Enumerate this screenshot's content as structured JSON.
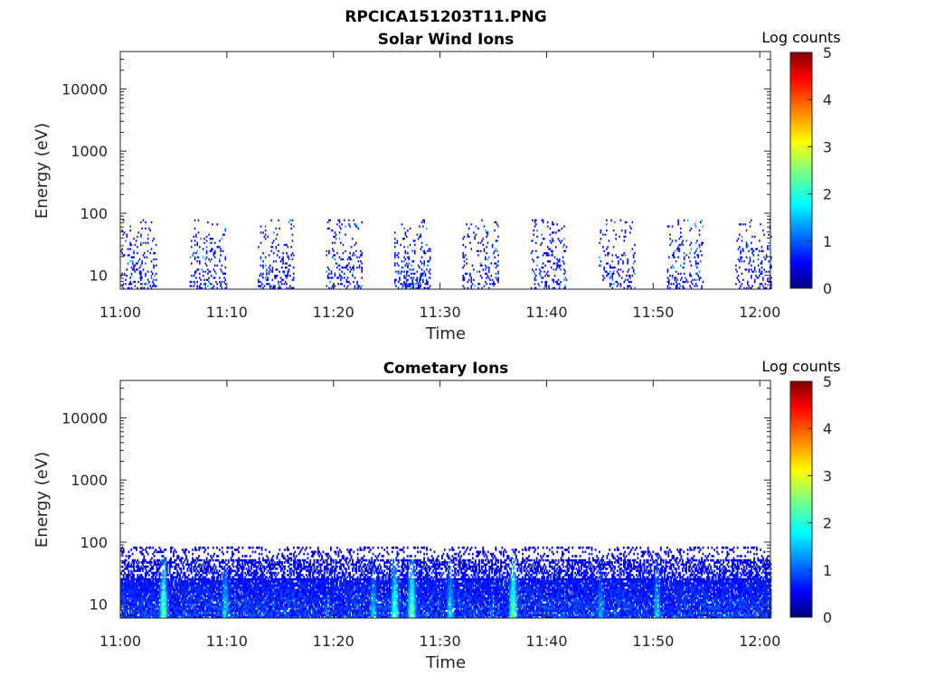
{
  "figure": {
    "filename": "RPCICA151203T11.PNG"
  },
  "chart_data": [
    {
      "type": "heatmap",
      "title": "Solar Wind Ions",
      "xlabel": "Time",
      "ylabel": "Energy (eV)",
      "x_ticks": [
        "11:00",
        "11:10",
        "11:20",
        "11:30",
        "11:40",
        "11:50",
        "12:00"
      ],
      "y_ticks": [
        "10",
        "100",
        "1000",
        "10000"
      ],
      "y_scale": "log",
      "ylim_eV": [
        6,
        40000
      ],
      "xlim": [
        "11:00",
        "12:01"
      ],
      "colorbar": {
        "label": "Log counts",
        "range": [
          0,
          5
        ],
        "ticks": [
          "0",
          "1",
          "2",
          "3",
          "4",
          "5"
        ],
        "colormap": "jet"
      },
      "data_energy_range_eV": [
        6,
        80
      ],
      "bursts": [
        {
          "start": "11:00.0",
          "end": "11:03.3",
          "intensity": 0.4
        },
        {
          "start": "11:06.5",
          "end": "11:09.8",
          "intensity": 0.4
        },
        {
          "start": "11:12.9",
          "end": "11:16.2",
          "intensity": 0.45
        },
        {
          "start": "11:19.3",
          "end": "11:22.6",
          "intensity": 0.4
        },
        {
          "start": "11:25.7",
          "end": "11:29.0",
          "intensity": 0.6
        },
        {
          "start": "11:32.1",
          "end": "11:35.4",
          "intensity": 0.4
        },
        {
          "start": "11:38.5",
          "end": "11:41.8",
          "intensity": 0.45
        },
        {
          "start": "11:44.9",
          "end": "11:48.2",
          "intensity": 0.35
        },
        {
          "start": "11:51.3",
          "end": "11:54.6",
          "intensity": 0.35
        },
        {
          "start": "11:57.7",
          "end": "12:01.0",
          "intensity": 0.4
        }
      ]
    },
    {
      "type": "heatmap",
      "title": "Cometary Ions",
      "xlabel": "Time",
      "ylabel": "Energy (eV)",
      "x_ticks": [
        "11:00",
        "11:10",
        "11:20",
        "11:30",
        "11:40",
        "11:50",
        "12:00"
      ],
      "y_ticks": [
        "10",
        "100",
        "1000",
        "10000"
      ],
      "y_scale": "log",
      "ylim_eV": [
        6,
        40000
      ],
      "xlim": [
        "11:00",
        "12:01"
      ],
      "colorbar": {
        "label": "Log counts",
        "range": [
          0,
          5
        ],
        "ticks": [
          "0",
          "1",
          "2",
          "3",
          "4",
          "5"
        ],
        "colormap": "jet"
      },
      "data_energy_range_eV": [
        6,
        85
      ],
      "enhancements": [
        {
          "time": "11:04.0",
          "log_counts": 2.6
        },
        {
          "time": "11:09.8",
          "log_counts": 1.9
        },
        {
          "time": "11:23.7",
          "log_counts": 1.8
        },
        {
          "time": "11:25.7",
          "log_counts": 2.5
        },
        {
          "time": "11:27.3",
          "log_counts": 2.7
        },
        {
          "time": "11:30.9",
          "log_counts": 1.9
        },
        {
          "time": "11:36.8",
          "log_counts": 2.7
        },
        {
          "time": "11:45.0",
          "log_counts": 1.6
        },
        {
          "time": "11:50.3",
          "log_counts": 1.8
        }
      ]
    }
  ]
}
